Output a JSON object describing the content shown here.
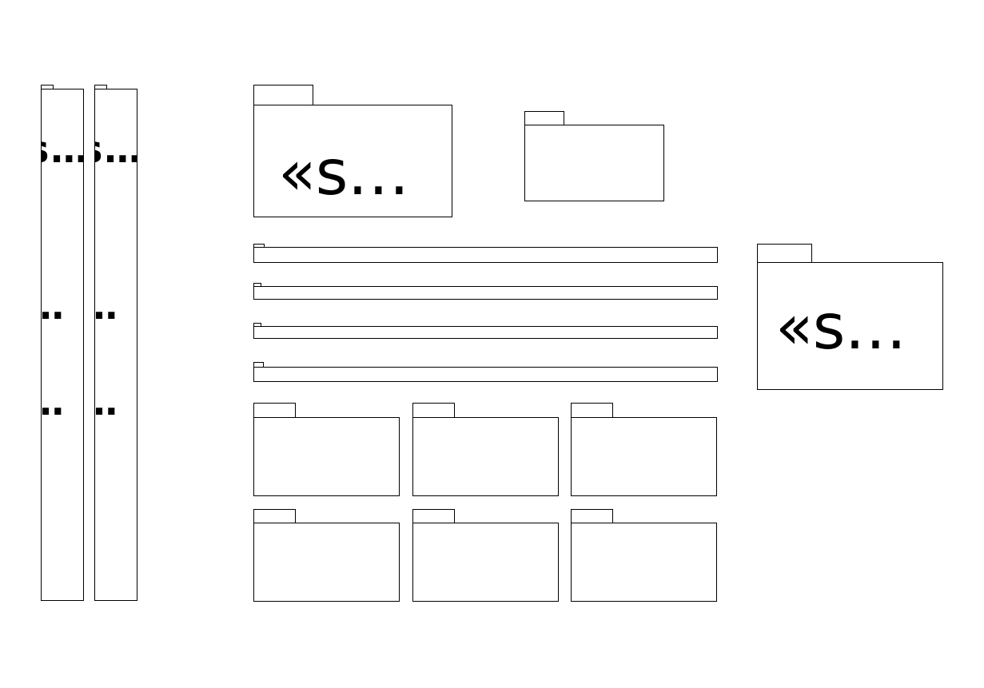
{
  "packages": {
    "large_label": "«s…",
    "column_labels": {
      "top": "s…",
      "middle": "…",
      "bottom": "…"
    }
  }
}
